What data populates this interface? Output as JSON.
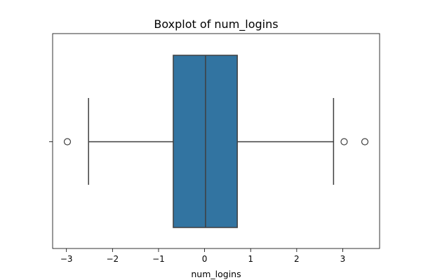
{
  "chart_data": {
    "type": "boxplot",
    "orientation": "horizontal",
    "title": "Boxplot of num_logins",
    "xlabel": "num_logins",
    "ylabel": "",
    "xlim": [
      -3.3,
      3.8
    ],
    "xticks": [
      -3,
      -2,
      -1,
      0,
      1,
      2,
      3
    ],
    "xtick_labels": [
      "−3",
      "−2",
      "−1",
      "0",
      "1",
      "2",
      "3"
    ],
    "grid": false,
    "box": {
      "whisker_low": -2.52,
      "q1": -0.68,
      "median": 0.02,
      "q3": 0.71,
      "whisker_high": 2.8
    },
    "outliers": [
      -2.98,
      3.03,
      3.48
    ],
    "colors": {
      "box_fill": "#3274a1",
      "line": "#3f3f3f",
      "axes": "#000000"
    }
  }
}
